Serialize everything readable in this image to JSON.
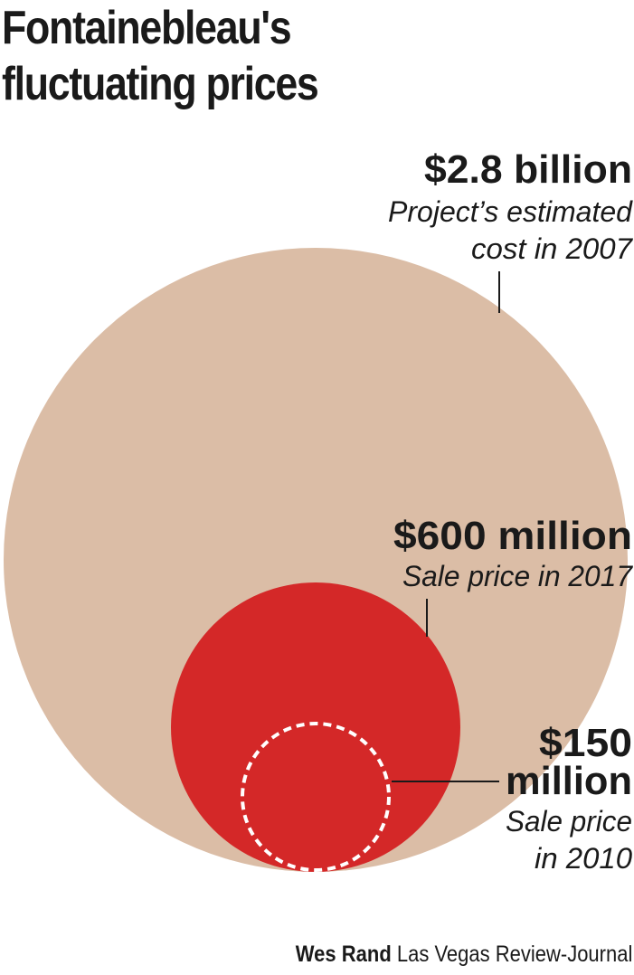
{
  "title_lines": [
    "Fontainebleau's",
    "fluctuating prices"
  ],
  "chart_data": {
    "type": "bubble",
    "title": "Fontainebleau's fluctuating prices",
    "series": [
      {
        "value_label": "$2.8 billion",
        "value_millions": 2800,
        "desc_lines": [
          "Project’s estimated",
          "cost in 2007"
        ],
        "year": 2007,
        "color": "#dbbda6",
        "style": "filled"
      },
      {
        "value_label": "$600 million",
        "value_millions": 600,
        "desc_lines": [
          "Sale price in 2017"
        ],
        "year": 2017,
        "color": "#d42828",
        "style": "filled"
      },
      {
        "value_label_lines": [
          "$150",
          "million"
        ],
        "value_millions": 150,
        "desc_lines": [
          "Sale price",
          "in 2010"
        ],
        "year": 2010,
        "color": "#ffffff",
        "style": "dashed-outline"
      }
    ]
  },
  "credit": {
    "name": "Wes Rand",
    "org": "Las Vegas Review-Journal"
  }
}
